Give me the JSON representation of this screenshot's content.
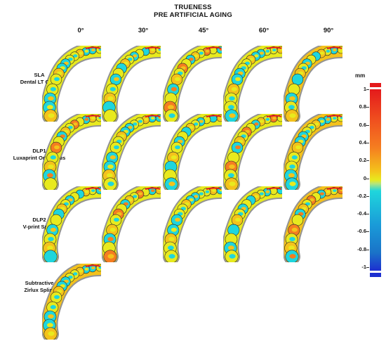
{
  "title_line1": "TRUENESS",
  "title_line2": "PRE ARTIFICIAL AGING",
  "columns": [
    "0°",
    "30°",
    "45°",
    "60°",
    "90°"
  ],
  "rows": [
    {
      "line1": "SLA",
      "line2": "Dental LT Clear",
      "count": 5
    },
    {
      "line1": "DLP1",
      "line2": "Luxaprint Ortho Plus",
      "count": 5
    },
    {
      "line1": "DLP2",
      "line2": "V-print Splint",
      "count": 5
    },
    {
      "line1": "Subtractive",
      "line2": "Zirlux Splint",
      "count": 1
    }
  ],
  "scale": {
    "unit": "mm",
    "ticks": [
      "1",
      "0.8",
      "0.6",
      "0.4",
      "0.2",
      "0",
      "-0.2",
      "-0.4",
      "-0.6",
      "-0.8",
      "-1"
    ],
    "colors": {
      "max": "#e41a1c",
      "high": "#f57d20",
      "mid_high": "#f4c21b",
      "zero": "#e8ea1e",
      "mid_low": "#1fd6dc",
      "low": "#1a73c8",
      "min": "#1d2fd0"
    }
  }
}
